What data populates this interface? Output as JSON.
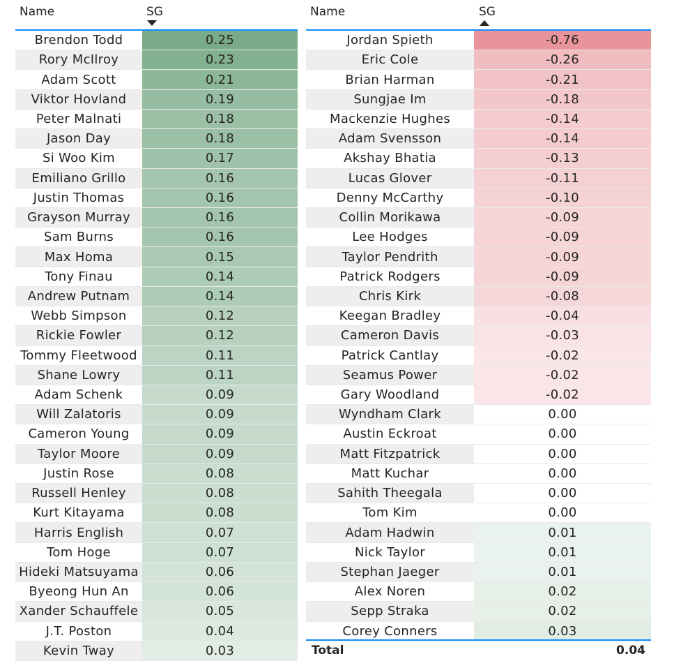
{
  "left": {
    "name_header": "Name",
    "sg_header": "SG",
    "sort": "descending",
    "rows": [
      {
        "name": "Brendon Todd",
        "sg": "0.25"
      },
      {
        "name": "Rory McIlroy",
        "sg": "0.23"
      },
      {
        "name": "Adam Scott",
        "sg": "0.21"
      },
      {
        "name": "Viktor Hovland",
        "sg": "0.19"
      },
      {
        "name": "Peter Malnati",
        "sg": "0.18"
      },
      {
        "name": "Jason Day",
        "sg": "0.18"
      },
      {
        "name": "Si Woo Kim",
        "sg": "0.17"
      },
      {
        "name": "Emiliano Grillo",
        "sg": "0.16"
      },
      {
        "name": "Justin Thomas",
        "sg": "0.16"
      },
      {
        "name": "Grayson Murray",
        "sg": "0.16"
      },
      {
        "name": "Sam Burns",
        "sg": "0.16"
      },
      {
        "name": "Max Homa",
        "sg": "0.15"
      },
      {
        "name": "Tony Finau",
        "sg": "0.14"
      },
      {
        "name": "Andrew Putnam",
        "sg": "0.14"
      },
      {
        "name": "Webb Simpson",
        "sg": "0.12"
      },
      {
        "name": "Rickie Fowler",
        "sg": "0.12"
      },
      {
        "name": "Tommy Fleetwood",
        "sg": "0.11"
      },
      {
        "name": "Shane Lowry",
        "sg": "0.11"
      },
      {
        "name": "Adam Schenk",
        "sg": "0.09"
      },
      {
        "name": "Will Zalatoris",
        "sg": "0.09"
      },
      {
        "name": "Cameron Young",
        "sg": "0.09"
      },
      {
        "name": "Taylor Moore",
        "sg": "0.09"
      },
      {
        "name": "Justin Rose",
        "sg": "0.08"
      },
      {
        "name": "Russell Henley",
        "sg": "0.08"
      },
      {
        "name": "Kurt Kitayama",
        "sg": "0.08"
      },
      {
        "name": "Harris English",
        "sg": "0.07"
      },
      {
        "name": "Tom Hoge",
        "sg": "0.07"
      },
      {
        "name": "Hideki Matsuyama",
        "sg": "0.06"
      },
      {
        "name": "Byeong Hun An",
        "sg": "0.06"
      },
      {
        "name": "Xander Schauffele",
        "sg": "0.05"
      },
      {
        "name": "J.T. Poston",
        "sg": "0.04"
      },
      {
        "name": "Kevin Tway",
        "sg": "0.03"
      }
    ]
  },
  "right": {
    "name_header": "Name",
    "sg_header": "SG",
    "sort": "ascending",
    "rows": [
      {
        "name": "Jordan Spieth",
        "sg": "-0.76"
      },
      {
        "name": "Eric Cole",
        "sg": "-0.26"
      },
      {
        "name": "Brian Harman",
        "sg": "-0.21"
      },
      {
        "name": "Sungjae Im",
        "sg": "-0.18"
      },
      {
        "name": "Mackenzie Hughes",
        "sg": "-0.14"
      },
      {
        "name": "Adam Svensson",
        "sg": "-0.14"
      },
      {
        "name": "Akshay Bhatia",
        "sg": "-0.13"
      },
      {
        "name": "Lucas Glover",
        "sg": "-0.11"
      },
      {
        "name": "Denny McCarthy",
        "sg": "-0.10"
      },
      {
        "name": "Collin Morikawa",
        "sg": "-0.09"
      },
      {
        "name": "Lee Hodges",
        "sg": "-0.09"
      },
      {
        "name": "Taylor Pendrith",
        "sg": "-0.09"
      },
      {
        "name": "Patrick Rodgers",
        "sg": "-0.09"
      },
      {
        "name": "Chris Kirk",
        "sg": "-0.08"
      },
      {
        "name": "Keegan Bradley",
        "sg": "-0.04"
      },
      {
        "name": "Cameron Davis",
        "sg": "-0.03"
      },
      {
        "name": "Patrick Cantlay",
        "sg": "-0.02"
      },
      {
        "name": "Seamus Power",
        "sg": "-0.02"
      },
      {
        "name": "Gary Woodland",
        "sg": "-0.02"
      },
      {
        "name": "Wyndham Clark",
        "sg": "0.00"
      },
      {
        "name": "Austin Eckroat",
        "sg": "0.00"
      },
      {
        "name": "Matt Fitzpatrick",
        "sg": "0.00"
      },
      {
        "name": "Matt Kuchar",
        "sg": "0.00"
      },
      {
        "name": "Sahith Theegala",
        "sg": "0.00"
      },
      {
        "name": "Tom Kim",
        "sg": "0.00"
      },
      {
        "name": "Adam Hadwin",
        "sg": "0.01"
      },
      {
        "name": "Nick Taylor",
        "sg": "0.01"
      },
      {
        "name": "Stephan Jaeger",
        "sg": "0.01"
      },
      {
        "name": "Alex Noren",
        "sg": "0.02"
      },
      {
        "name": "Sepp Straka",
        "sg": "0.02"
      },
      {
        "name": "Corey Conners",
        "sg": "0.03"
      }
    ],
    "total_label": "Total",
    "total_value": "0.04"
  },
  "colors": {
    "header_rule": "#118dff",
    "row_band": "#eeeeee",
    "positive_max": "#7aab88",
    "negative_max": "#e8949a",
    "neutral": "#ffffff"
  },
  "icons": {
    "left_sort": "sort-descending-icon",
    "right_sort": "sort-ascending-icon"
  }
}
